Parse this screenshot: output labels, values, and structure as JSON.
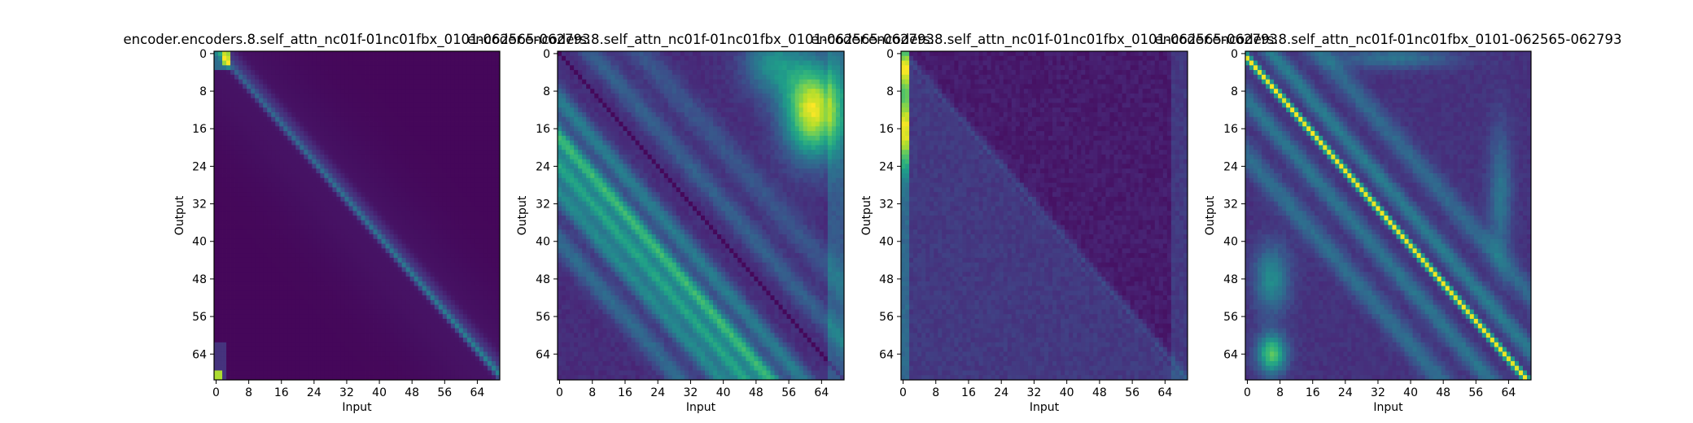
{
  "chart_data": [
    {
      "type": "heatmap",
      "title": "encoder.encoders.8.self_attn_nc01f-01nc01fbx_0101-062565-062793",
      "xlabel": "Input",
      "ylabel": "Output",
      "xticks": [
        0,
        8,
        16,
        24,
        32,
        40,
        48,
        56,
        64
      ],
      "yticks": [
        0,
        8,
        16,
        24,
        32,
        40,
        48,
        56,
        64
      ],
      "size": 70,
      "colormap": "viridis",
      "pattern": "main diagonal band with bright top-left corner and bottom-left cell"
    },
    {
      "type": "heatmap",
      "title": "encoder.encoders.8.self_attn_nc01f-01nc01fbx_0101-062565-062793",
      "xlabel": "Input",
      "ylabel": "Output",
      "xticks": [
        0,
        8,
        16,
        24,
        32,
        40,
        48,
        56,
        64
      ],
      "yticks": [
        0,
        8,
        16,
        24,
        32,
        40,
        48,
        56,
        64
      ],
      "size": 70,
      "colormap": "viridis",
      "pattern": "multiple parallel bands below diagonal, dark diagonal line, bright top-right region"
    },
    {
      "type": "heatmap",
      "title": "encoder.encoders.8.self_attn_nc01f-01nc01fbx_0101-062565-062793",
      "xlabel": "Input",
      "ylabel": "Output",
      "xticks": [
        0,
        8,
        16,
        24,
        32,
        40,
        48,
        56,
        64
      ],
      "yticks": [
        0,
        8,
        16,
        24,
        32,
        40,
        48,
        56,
        64
      ],
      "size": 70,
      "colormap": "viridis",
      "pattern": "bright first columns, faint diagonal, lighter lower-left triangle"
    },
    {
      "type": "heatmap",
      "title": "encoder.encoders.8.self_attn_nc01f-01nc01fbx_0101-062565-062793",
      "xlabel": "Input",
      "ylabel": "Output",
      "xticks": [
        0,
        8,
        16,
        24,
        32,
        40,
        48,
        56,
        64
      ],
      "yticks": [
        0,
        8,
        16,
        24,
        32,
        40,
        48,
        56,
        64
      ],
      "size": 70,
      "colormap": "viridis",
      "pattern": "strong bright main diagonal with parallel bands and bright lower-left blob"
    }
  ]
}
